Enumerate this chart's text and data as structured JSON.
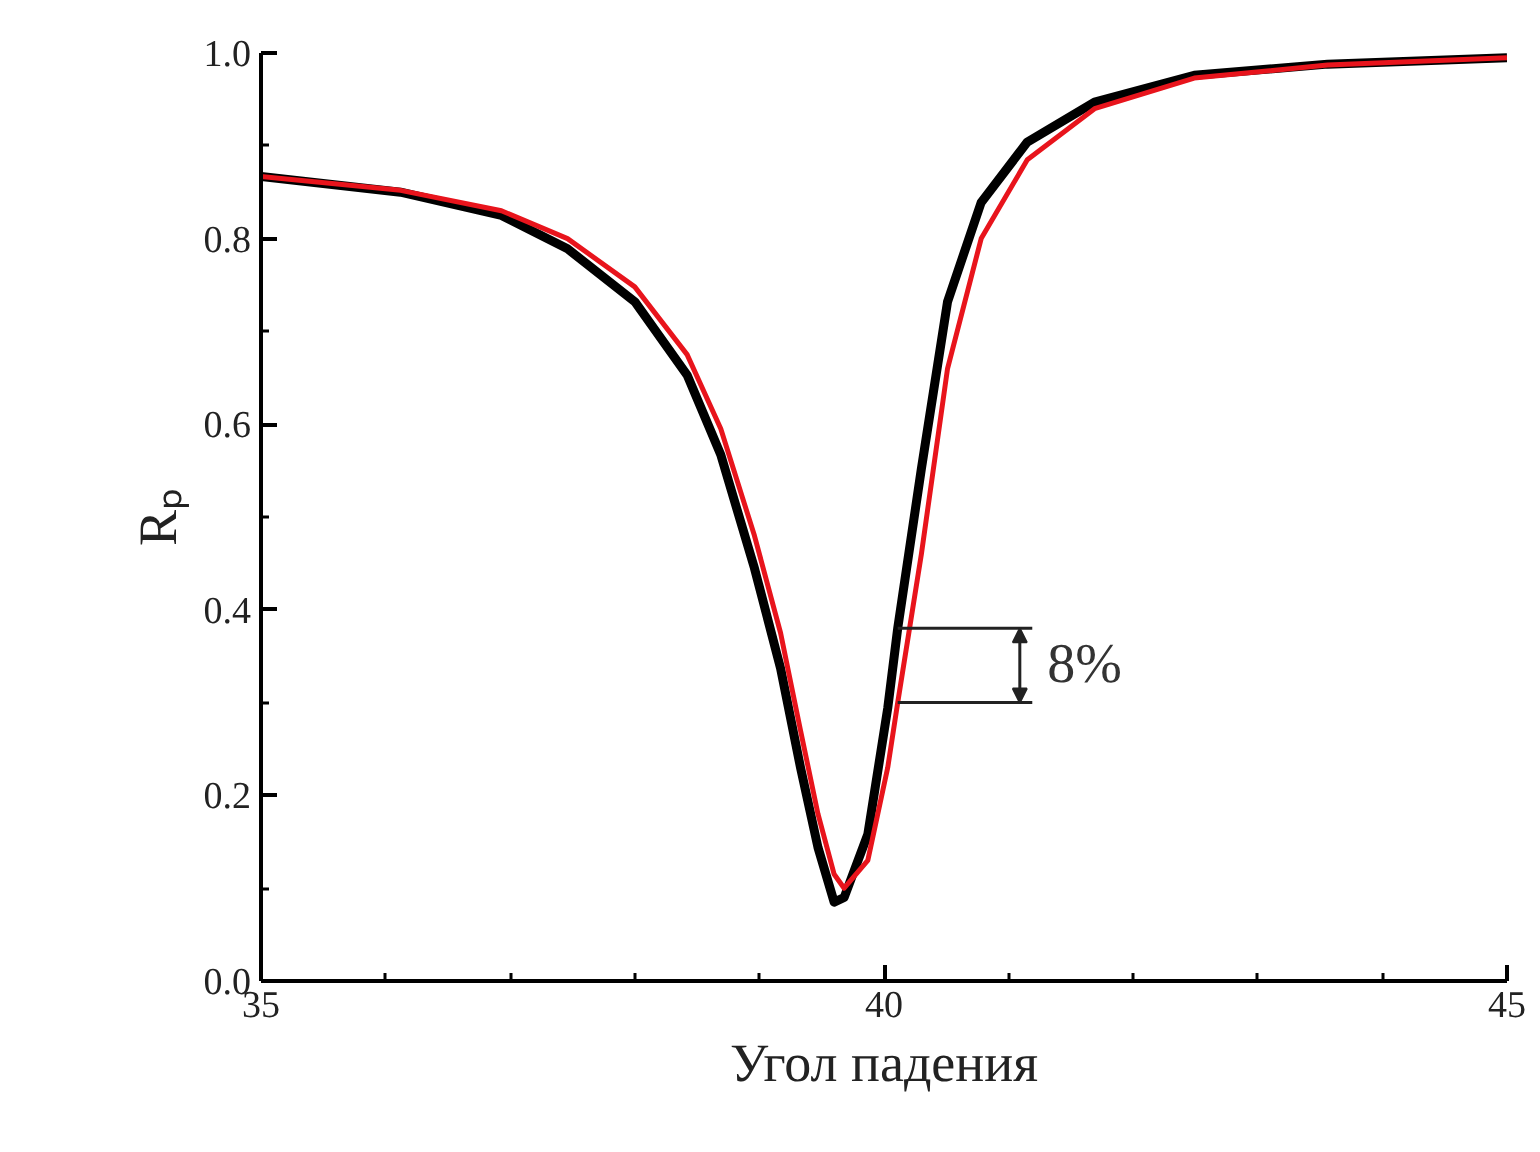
{
  "chart_data": {
    "type": "line",
    "xlabel": "Угол падения",
    "ylabel": "Rₚ",
    "x": [
      35,
      36.12,
      36.93,
      37.46,
      38.0,
      38.42,
      38.69,
      38.96,
      39.17,
      39.33,
      39.47,
      39.6,
      39.68,
      39.87,
      40.03,
      40.11,
      40.3,
      40.51,
      40.78,
      41.15,
      41.69,
      42.49,
      43.56,
      45
    ],
    "series": [
      {
        "color": "#000000",
        "values": [
          0.867,
          0.85,
          0.825,
          0.789,
          0.732,
          0.653,
          0.567,
          0.445,
          0.337,
          0.23,
          0.144,
          0.085,
          0.09,
          0.158,
          0.294,
          0.38,
          0.552,
          0.732,
          0.839,
          0.904,
          0.947,
          0.976,
          0.988,
          0.995
        ]
      },
      {
        "color": "#e8141c",
        "values": [
          0.867,
          0.852,
          0.83,
          0.8,
          0.748,
          0.675,
          0.595,
          0.48,
          0.375,
          0.27,
          0.18,
          0.115,
          0.1,
          0.13,
          0.23,
          0.3,
          0.46,
          0.66,
          0.8,
          0.885,
          0.94,
          0.973,
          0.987,
          0.995
        ]
      }
    ],
    "xlim": [
      35,
      45
    ],
    "ylim": [
      0,
      1.0
    ],
    "xticks": [
      35,
      {
        "value": 36,
        "label": null
      },
      {
        "value": 37,
        "label": null
      },
      {
        "value": 38,
        "label": null
      },
      {
        "value": 39,
        "label": null
      },
      40,
      {
        "value": 41,
        "label": null
      },
      {
        "value": 42,
        "label": null
      },
      {
        "value": 43,
        "label": null
      },
      {
        "value": 44,
        "label": null
      },
      45
    ],
    "yticks": [
      {
        "value": 0,
        "label": "0.0"
      },
      {
        "value": 0.1,
        "label": null
      },
      0.2,
      {
        "value": 0.3,
        "label": null
      },
      0.4,
      {
        "value": 0.5,
        "label": null
      },
      0.6,
      {
        "value": 0.7,
        "label": null
      },
      0.8,
      {
        "value": 0.9,
        "label": null
      },
      {
        "value": 1.0,
        "label": "1.0"
      }
    ],
    "grid": false,
    "annotations": [
      {
        "text": "8%",
        "x": 40.11,
        "y": 0.34
      }
    ]
  }
}
